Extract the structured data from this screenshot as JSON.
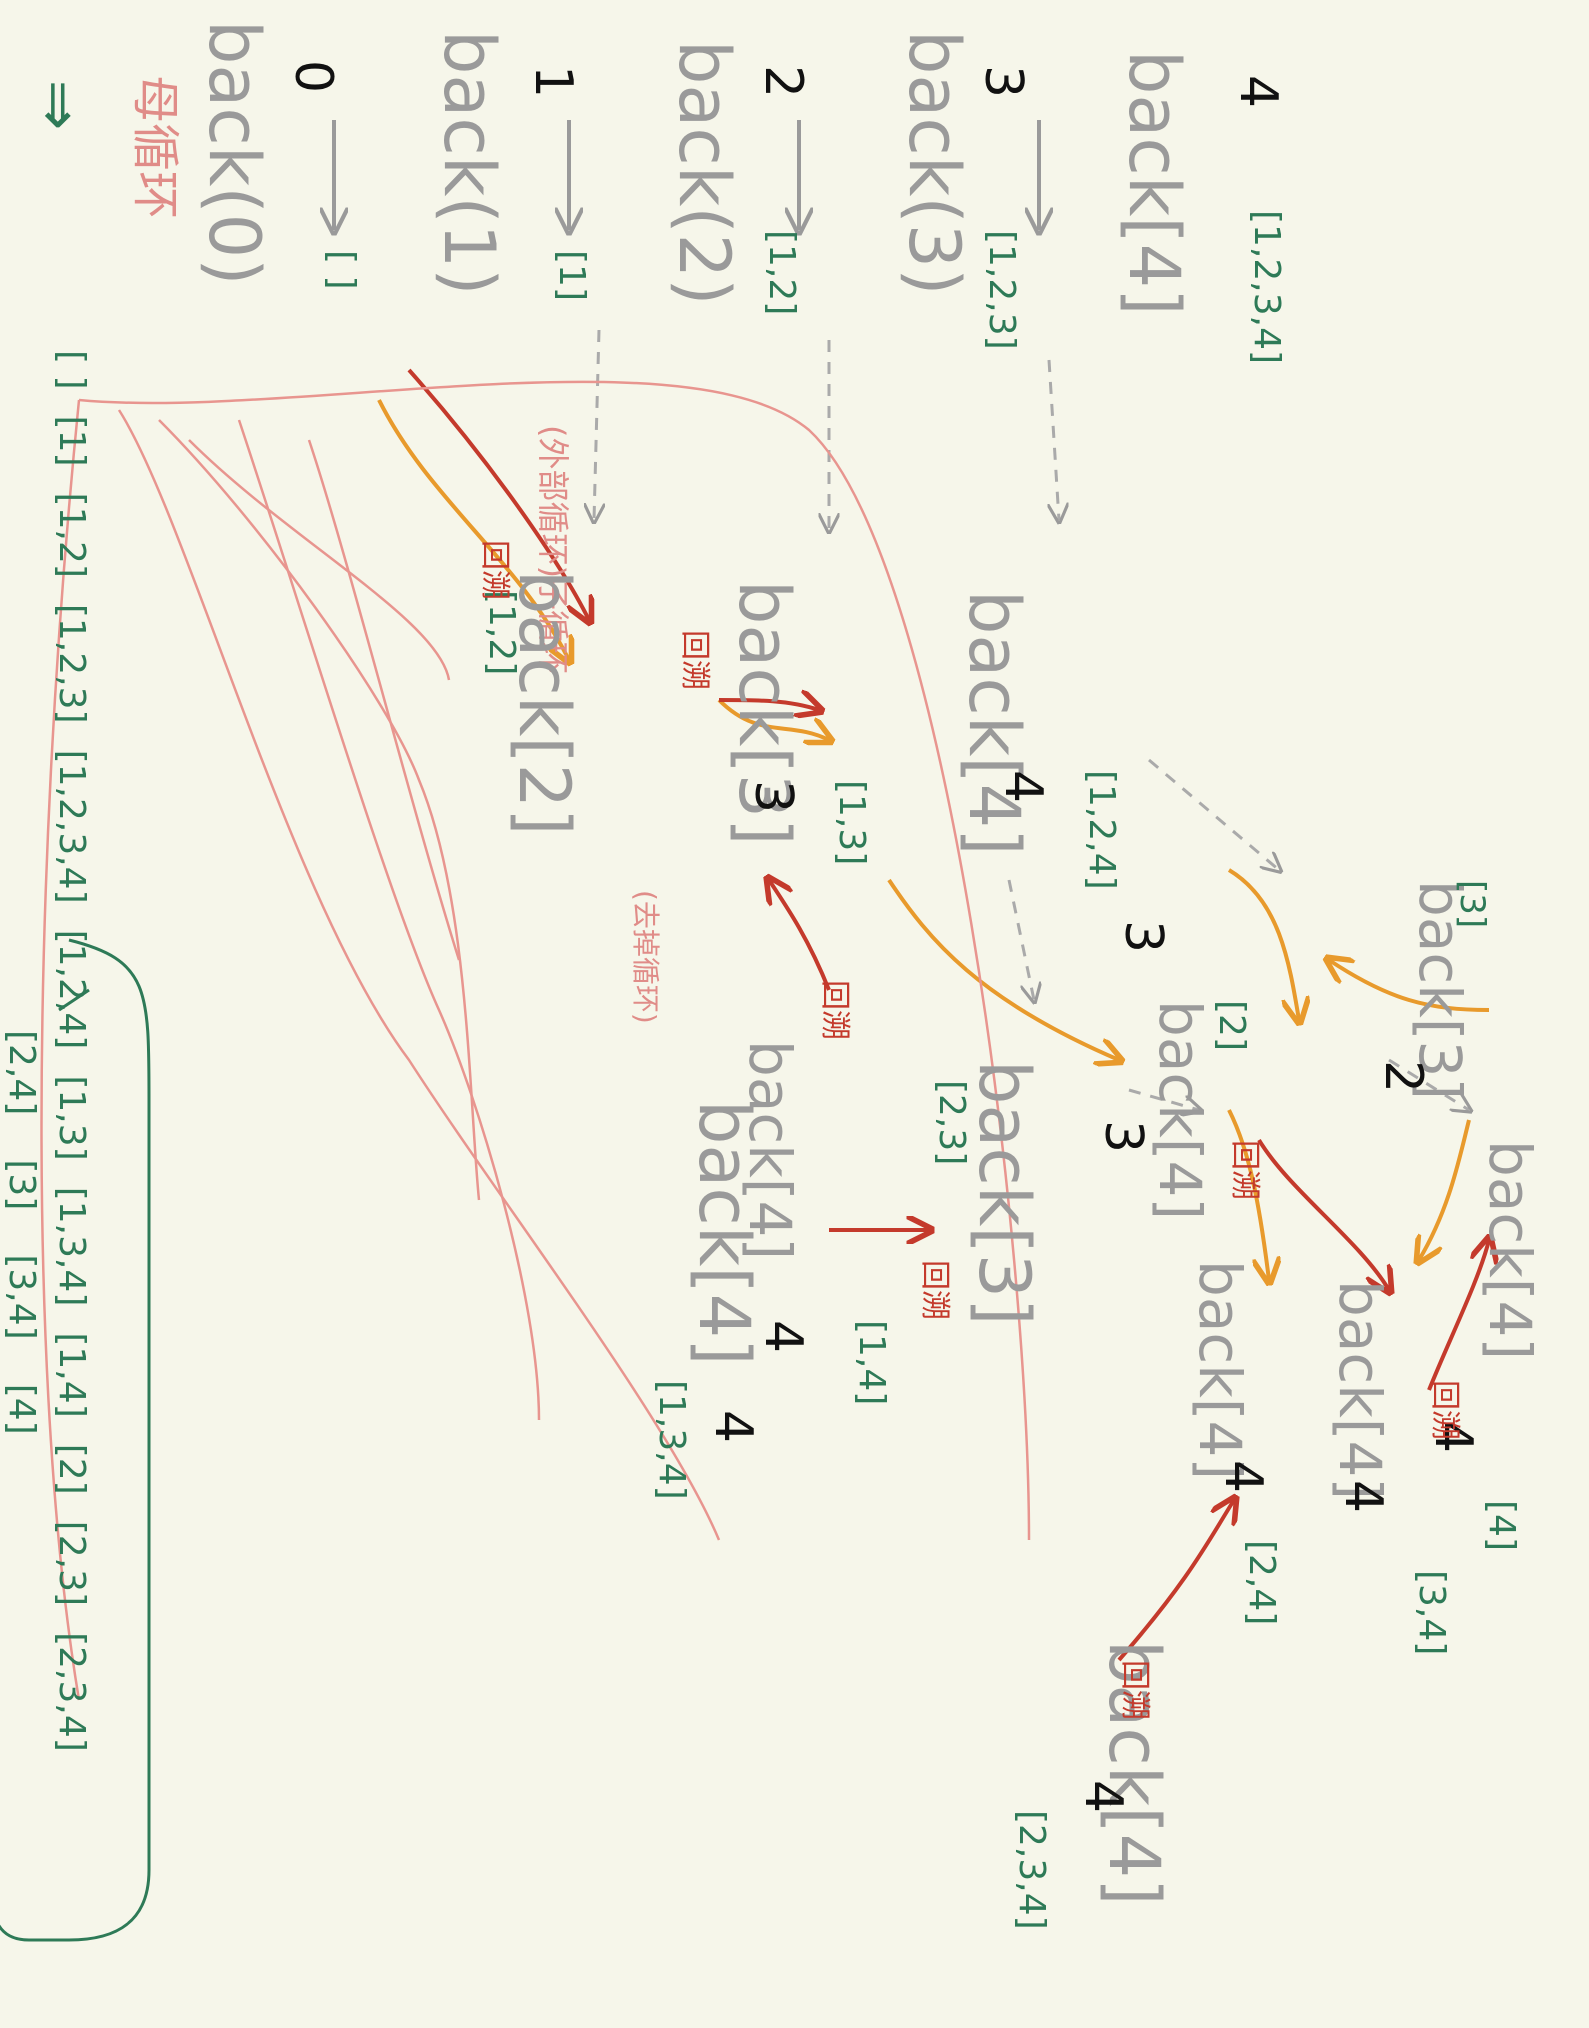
{
  "labels": {
    "title": "母循环",
    "traversal_note": "(外部循环)子循环",
    "sub_note": "(去掉循环)",
    "huisu": "回溯",
    "implies": "⇒"
  },
  "nodes": {
    "n0": "back(0)",
    "n1": "back(1)",
    "n2": "back(2)",
    "n3": "back(3)",
    "n4": "back[4]",
    "n12": "back[2]",
    "n13": "back[3]",
    "n14": "back[4]",
    "n123": "back[3]",
    "n124": "back[4]",
    "n134": "back[4]",
    "n1234": "back[4]",
    "n2_3": "back[3]",
    "n2_4": "back[4]",
    "n2_34": "back[4]",
    "n3_4": "back[4]",
    "n23_4": "back[4]"
  },
  "indices": {
    "i0": "0",
    "i1": "1",
    "i2": "2",
    "i3": "3",
    "i4": "4",
    "j4a": "4",
    "j3a": "3",
    "j4b": "4",
    "j2": "2",
    "j3b": "3",
    "j4c": "4",
    "j4d": "4",
    "j3c": "3",
    "j4e": "4",
    "j4f": "4",
    "j4g": "4"
  },
  "sets": {
    "s_empty": "[ ]",
    "s1": "[1]",
    "s12": "[1,2]",
    "s123": "[1,2,3]",
    "s1234": "[1,2,3,4]",
    "s124": "[1,2,4]",
    "s13": "[1,3]",
    "s134": "[1,3,4]",
    "s14": "[1,4]",
    "s2": "[2]",
    "s23": "[2,3]",
    "s234": "[2,3,4]",
    "s24": "[2,4]",
    "s3": "[3]",
    "s34": "[3,4]",
    "s4": "[4]"
  },
  "result": {
    "items": [
      "[ ]",
      "[1]",
      "[1,2]",
      "[1,2,3]",
      "[1,2,3,4]",
      "[1,2,4]",
      "[1,3]",
      "[1,3,4]",
      "[1,4]",
      "[2]",
      "[2,3]",
      "[2,3,4]"
    ],
    "items2": [
      "[2,4]",
      "[3]",
      "[3,4]",
      "[4]"
    ]
  }
}
